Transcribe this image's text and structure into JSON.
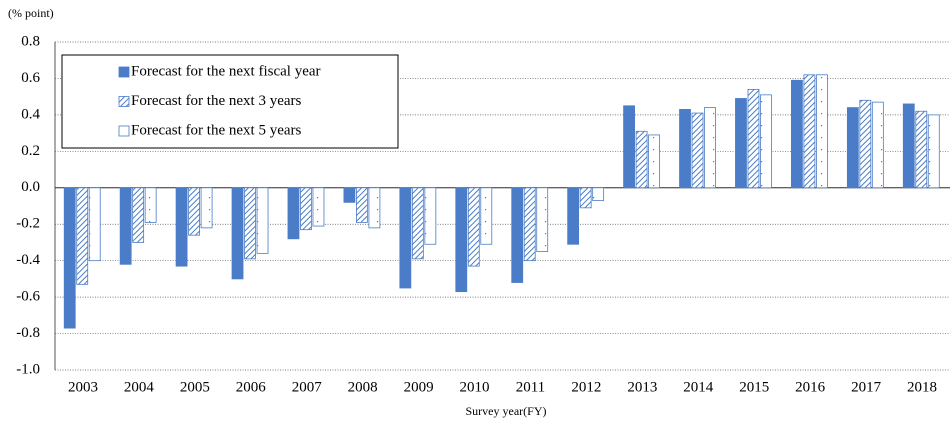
{
  "chart_data": {
    "type": "bar",
    "y_label": "(% point)",
    "x_label": "Survey year(FY)",
    "categories": [
      "2003",
      "2004",
      "2005",
      "2006",
      "2007",
      "2008",
      "2009",
      "2010",
      "2011",
      "2012",
      "2013",
      "2014",
      "2015",
      "2016",
      "2017",
      "2018"
    ],
    "series": [
      {
        "name": "Forecast for the next fiscal year",
        "color": "#4a7cc7",
        "pattern": "solid",
        "values": [
          -0.77,
          -0.42,
          -0.43,
          -0.5,
          -0.28,
          -0.08,
          -0.55,
          -0.57,
          -0.52,
          -0.31,
          0.45,
          0.43,
          0.49,
          0.59,
          0.44,
          0.46
        ]
      },
      {
        "name": "Forecast for the next 3 years",
        "color": "#4a7cc7",
        "pattern": "hatch",
        "values": [
          -0.53,
          -0.3,
          -0.26,
          -0.39,
          -0.23,
          -0.19,
          -0.39,
          -0.43,
          -0.4,
          -0.11,
          0.31,
          0.41,
          0.54,
          0.62,
          0.48,
          0.42
        ]
      },
      {
        "name": "Forecast for the next 5 years",
        "color": "#4a7cc7",
        "pattern": "dots",
        "values": [
          -0.4,
          -0.19,
          -0.22,
          -0.36,
          -0.21,
          -0.22,
          -0.31,
          -0.31,
          -0.35,
          -0.07,
          0.29,
          0.44,
          0.51,
          0.62,
          0.47,
          0.4
        ]
      }
    ],
    "ylim": [
      -1,
      0.8
    ],
    "yticks": [
      {
        "value": -1,
        "label": "-1.0"
      },
      -0.8,
      -0.6,
      -0.4,
      -0.2,
      {
        "value": 0,
        "label": "0.0"
      },
      0.2,
      0.4,
      0.6,
      0.8
    ],
    "grid": true,
    "legend": "top-left"
  }
}
